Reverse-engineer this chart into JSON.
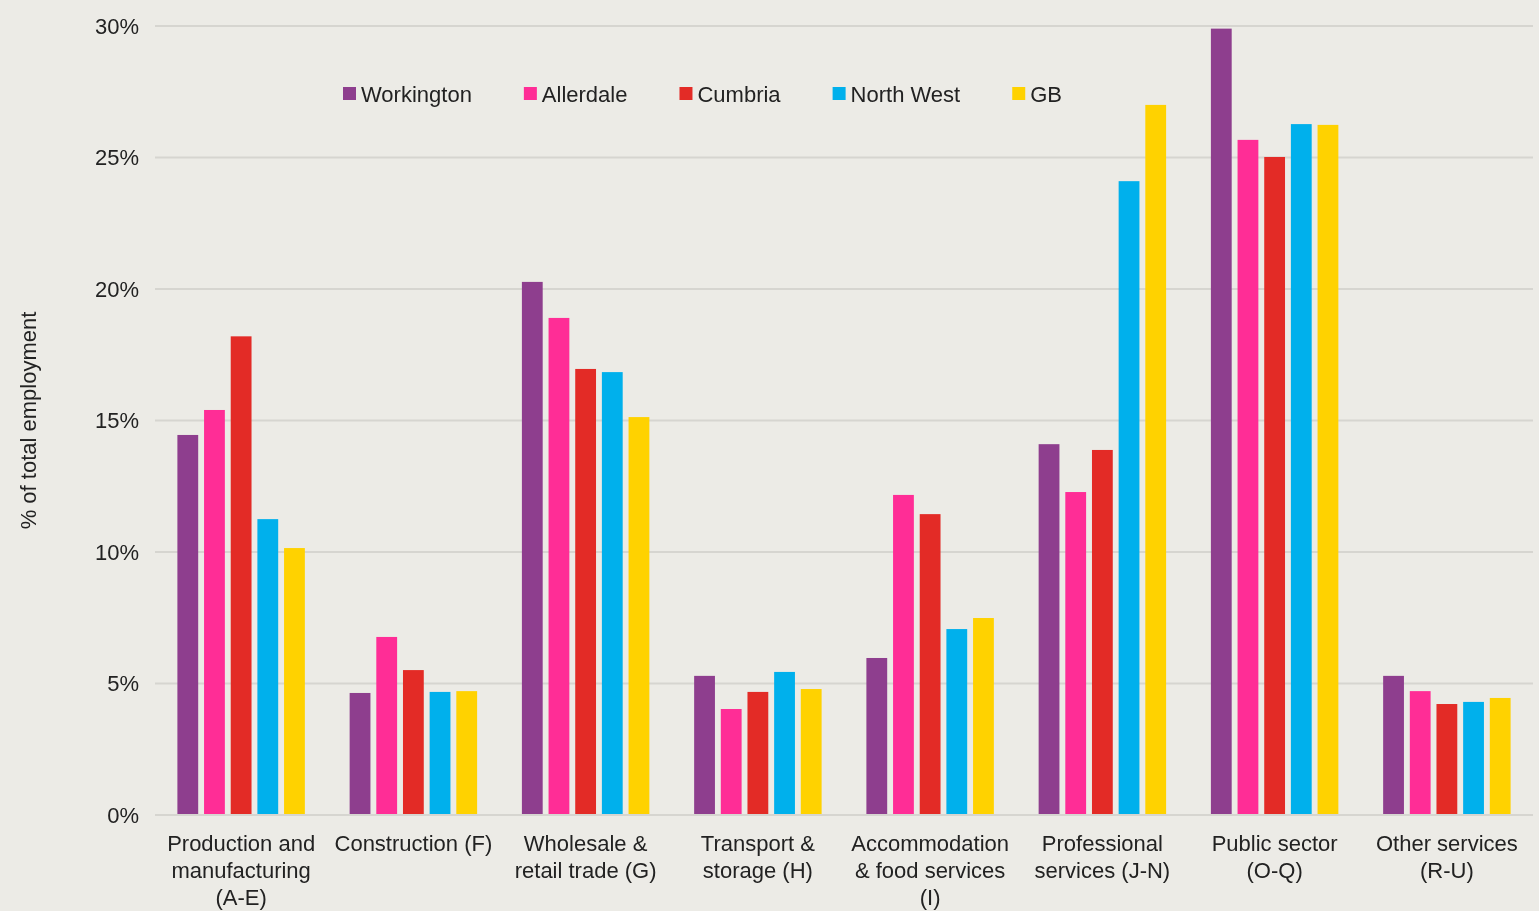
{
  "chart_data": {
    "type": "bar",
    "ylabel": "% of total employment",
    "categories": [
      "Production and manufacturing (A-E)",
      "Construction (F)",
      "Wholesale & retail trade (G)",
      "Transport & storage (H)",
      "Accommodation & food services (I)",
      "Professional services (J-N)",
      "Public sector (O-Q)",
      "Other services (R-U)"
    ],
    "series": [
      {
        "name": "Workington",
        "color": "#8e3e8e",
        "values": [
          14.45,
          4.64,
          20.27,
          5.29,
          5.97,
          14.1,
          29.9,
          5.29
        ]
      },
      {
        "name": "Allerdale",
        "color": "#ff2d96",
        "values": [
          15.4,
          6.77,
          18.9,
          4.03,
          12.17,
          12.28,
          25.67,
          4.71
        ]
      },
      {
        "name": "Cumbria",
        "color": "#e32b26",
        "values": [
          18.2,
          5.51,
          16.96,
          4.68,
          11.44,
          13.88,
          25.02,
          4.22
        ]
      },
      {
        "name": "North West",
        "color": "#00b0ec",
        "values": [
          11.25,
          4.68,
          16.84,
          5.44,
          7.07,
          24.1,
          26.27,
          4.3
        ]
      },
      {
        "name": "GB",
        "color": "#ffd200",
        "values": [
          10.15,
          4.71,
          15.13,
          4.79,
          7.49,
          27.0,
          26.24,
          4.45
        ]
      }
    ],
    "ylim": [
      0,
      30
    ],
    "yticks": [
      {
        "value": 0,
        "label": "0%"
      },
      {
        "value": 5,
        "label": "5%"
      },
      {
        "value": 10,
        "label": "10%"
      },
      {
        "value": 15,
        "label": "15%"
      },
      {
        "value": 20,
        "label": "20%"
      },
      {
        "value": 25,
        "label": "25%"
      },
      {
        "value": 30,
        "label": "30%"
      }
    ],
    "grid": "y",
    "legend": "top left"
  }
}
